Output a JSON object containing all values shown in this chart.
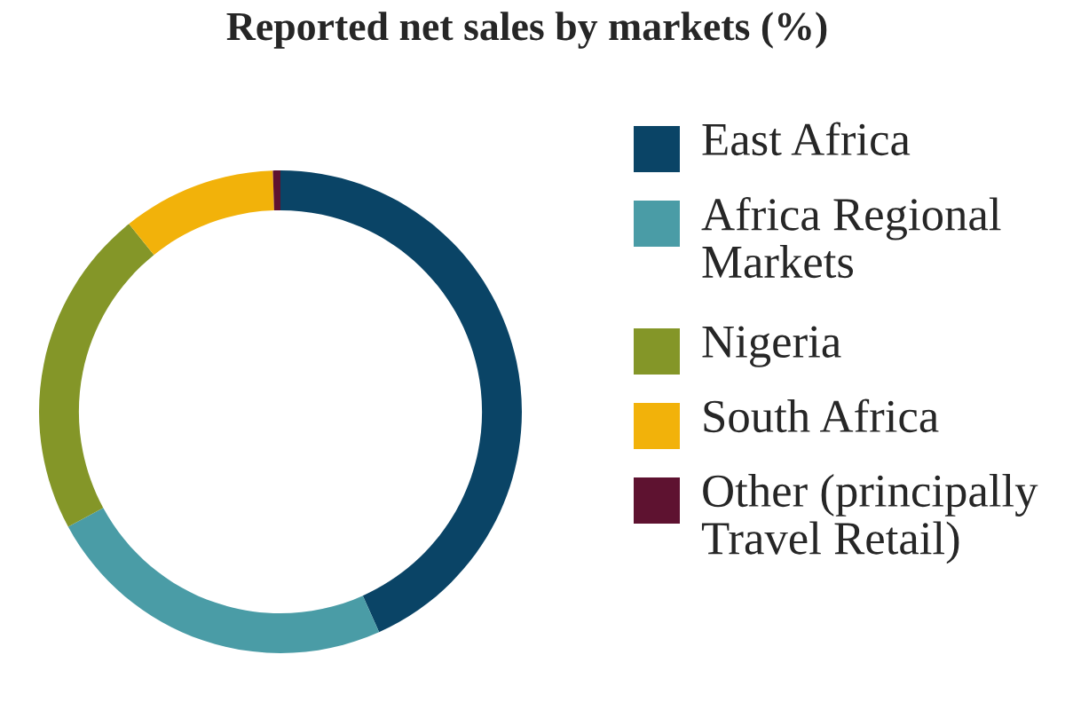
{
  "chart_data": {
    "type": "donut",
    "title": "Reported net sales by markets (%)",
    "categories": [
      "East Africa",
      "Africa Regional Markets",
      "Nigeria",
      "South Africa",
      "Other (principally Travel Retail)"
    ],
    "values": [
      43.3,
      23.8,
      22.1,
      10.3,
      0.5
    ],
    "colors": [
      "#0a4466",
      "#4a9ca6",
      "#849628",
      "#f2b20a",
      "#5e1230"
    ],
    "legend": "right"
  }
}
